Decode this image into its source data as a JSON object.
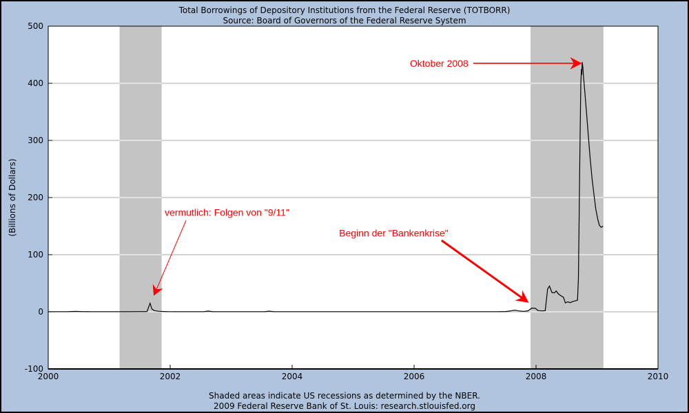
{
  "header": {
    "title": "Total Borrowings of Depository Institutions from the Federal Reserve (TOTBORR)",
    "subtitle": "Source: Board of Governors of the Federal Reserve System"
  },
  "footer": {
    "line1": "Shaded areas indicate US recessions as determined by the NBER.",
    "line2": "2009 Federal Reserve Bank of St. Louis: research.stlouisfed.org"
  },
  "colors": {
    "page_background": "#b0c4de",
    "plot_background": "#ffffff",
    "recession_band": "#c4c4c4",
    "gridline": "#aaaaaa",
    "band_gridline": "#ffffff",
    "series_line": "#000000",
    "axis": "#000000",
    "annotation": "#ff0000"
  },
  "chart_data": {
    "type": "line",
    "title": "Total Borrowings of Depository Institutions from the Federal Reserve (TOTBORR)",
    "subtitle": "Source: Board of Governors of the Federal Reserve System",
    "ylabel": "(Billions of Dollars)",
    "xlabel": "",
    "xlim": [
      2000,
      2010
    ],
    "ylim": [
      -100,
      500
    ],
    "x_ticks": [
      2000,
      2002,
      2004,
      2006,
      2008,
      2010
    ],
    "y_ticks": [
      -100,
      0,
      100,
      200,
      300,
      400,
      500
    ],
    "gridlines_y": [
      0,
      100,
      200,
      300,
      400
    ],
    "grid": "horizontal-only",
    "legend_position": "none",
    "recessions": [
      {
        "start": 2001.17,
        "end": 2001.86
      },
      {
        "start": 2007.91,
        "end": 2009.105
      }
    ],
    "series": [
      {
        "name": "TOTBORR",
        "points": [
          [
            2000.0,
            0.3
          ],
          [
            2000.15,
            0.25
          ],
          [
            2000.3,
            0.3
          ],
          [
            2000.45,
            0.7
          ],
          [
            2000.55,
            0.4
          ],
          [
            2000.7,
            0.3
          ],
          [
            2000.9,
            0.25
          ],
          [
            2001.1,
            0.3
          ],
          [
            2001.3,
            0.3
          ],
          [
            2001.5,
            0.35
          ],
          [
            2001.62,
            0.5
          ],
          [
            2001.67,
            15
          ],
          [
            2001.7,
            5
          ],
          [
            2001.74,
            2
          ],
          [
            2001.82,
            0.8
          ],
          [
            2001.95,
            0.4
          ],
          [
            2002.1,
            0.25
          ],
          [
            2002.3,
            0.2
          ],
          [
            2002.55,
            0.3
          ],
          [
            2002.62,
            1.3
          ],
          [
            2002.7,
            0.3
          ],
          [
            2002.9,
            0.2
          ],
          [
            2003.2,
            0.2
          ],
          [
            2003.55,
            0.3
          ],
          [
            2003.62,
            1.2
          ],
          [
            2003.7,
            0.3
          ],
          [
            2004.0,
            0.2
          ],
          [
            2004.4,
            0.25
          ],
          [
            2004.8,
            0.2
          ],
          [
            2005.2,
            0.25
          ],
          [
            2005.6,
            0.2
          ],
          [
            2006.0,
            0.25
          ],
          [
            2006.4,
            0.2
          ],
          [
            2006.8,
            0.25
          ],
          [
            2007.1,
            0.3
          ],
          [
            2007.35,
            0.3
          ],
          [
            2007.5,
            0.5
          ],
          [
            2007.58,
            1.6
          ],
          [
            2007.65,
            2.9
          ],
          [
            2007.72,
            1.6
          ],
          [
            2007.8,
            0.9
          ],
          [
            2007.87,
            1.8
          ],
          [
            2007.93,
            6.5
          ],
          [
            2007.99,
            6.2
          ],
          [
            2008.03,
            2.2
          ],
          [
            2008.09,
            1.6
          ],
          [
            2008.15,
            1.9
          ],
          [
            2008.19,
            40
          ],
          [
            2008.22,
            45
          ],
          [
            2008.26,
            34
          ],
          [
            2008.3,
            33
          ],
          [
            2008.33,
            36.5
          ],
          [
            2008.37,
            31
          ],
          [
            2008.41,
            28
          ],
          [
            2008.45,
            25.5
          ],
          [
            2008.48,
            15.5
          ],
          [
            2008.52,
            17.5
          ],
          [
            2008.56,
            16
          ],
          [
            2008.6,
            18
          ],
          [
            2008.64,
            19
          ],
          [
            2008.68,
            20.5
          ],
          [
            2008.695,
            58
          ],
          [
            2008.705,
            150
          ],
          [
            2008.715,
            245
          ],
          [
            2008.725,
            330
          ],
          [
            2008.735,
            400
          ],
          [
            2008.745,
            425
          ],
          [
            2008.75,
            415
          ],
          [
            2008.757,
            437
          ],
          [
            2008.768,
            428
          ],
          [
            2008.78,
            410
          ],
          [
            2008.8,
            385
          ],
          [
            2008.83,
            345
          ],
          [
            2008.86,
            305
          ],
          [
            2008.89,
            265
          ],
          [
            2008.92,
            232
          ],
          [
            2008.95,
            205
          ],
          [
            2008.98,
            180
          ],
          [
            2009.01,
            163
          ],
          [
            2009.04,
            151
          ],
          [
            2009.07,
            148
          ],
          [
            2009.1,
            150
          ]
        ]
      }
    ],
    "annotations": [
      {
        "id": "oktober-2008",
        "text": "Oktober 2008",
        "label_at": [
          2006.89,
          429
        ],
        "anchor": "end",
        "arrow_from": [
          2006.97,
          435
        ],
        "arrow_to": [
          2008.75,
          435
        ],
        "line_width": 1.7,
        "head_len": 17,
        "head_halfwidth": 9
      },
      {
        "id": "folgen-von-911",
        "text": "vermutlich: Folgen von \"9/11\"",
        "label_at": [
          2001.91,
          168
        ],
        "anchor": "start",
        "arrow_from": [
          2002.26,
          160
        ],
        "arrow_to": [
          2001.73,
          28
        ],
        "line_width": 1,
        "head_len": 15,
        "head_halfwidth": 8
      },
      {
        "id": "beginn-der-bankenkrise",
        "text": "Beginn der \"Bankenkrise\"",
        "label_at": [
          2004.77,
          132
        ],
        "anchor": "start",
        "arrow_from": [
          2006.45,
          125
        ],
        "arrow_to": [
          2007.88,
          16
        ],
        "line_width": 3,
        "head_len": 18,
        "head_halfwidth": 9
      }
    ]
  }
}
